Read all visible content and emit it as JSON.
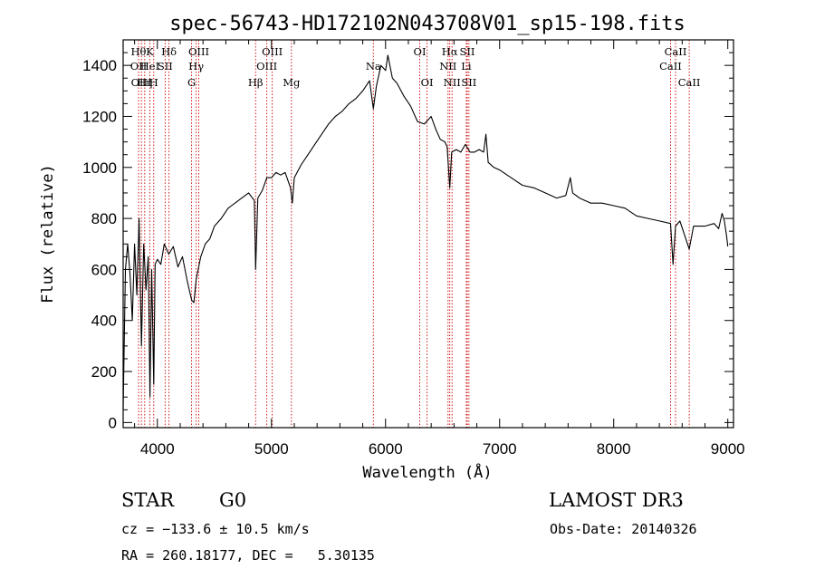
{
  "chart_data": {
    "type": "line",
    "title": "spec-56743-HD172102N043708V01_sp15-198.fits",
    "xlabel": "Wavelength (Å)",
    "ylabel": "Flux (relative)",
    "xlim": [
      3700,
      9050
    ],
    "ylim": [
      -20,
      1500
    ],
    "xticks": [
      4000,
      5000,
      6000,
      7000,
      8000,
      9000
    ],
    "yticks": [
      0,
      200,
      400,
      600,
      800,
      1000,
      1200,
      1400
    ],
    "grid": false,
    "line_color": "#000000",
    "marker_color": "#cc0000",
    "series": [
      {
        "x": [
          3700,
          3720,
          3740,
          3760,
          3780,
          3800,
          3820,
          3840,
          3860,
          3880,
          3900,
          3920,
          3935,
          3950,
          3968,
          3980,
          4000,
          4030,
          4060,
          4100,
          4140,
          4180,
          4220,
          4260,
          4300,
          4320,
          4340,
          4380,
          4420,
          4460,
          4500,
          4560,
          4620,
          4680,
          4740,
          4800,
          4850,
          4861,
          4880,
          4920,
          4960,
          5000,
          5040,
          5080,
          5120,
          5167,
          5183,
          5200,
          5260,
          5320,
          5380,
          5440,
          5500,
          5560,
          5620,
          5680,
          5740,
          5800,
          5860,
          5893,
          5920,
          5960,
          6000,
          6020,
          6060,
          6100,
          6160,
          6220,
          6280,
          6340,
          6400,
          6440,
          6480,
          6520,
          6540,
          6563,
          6580,
          6620,
          6660,
          6700,
          6740,
          6780,
          6820,
          6860,
          6880,
          6900,
          6950,
          7000,
          7100,
          7200,
          7300,
          7400,
          7500,
          7580,
          7620,
          7640,
          7700,
          7800,
          7900,
          8000,
          8100,
          8200,
          8300,
          8400,
          8498,
          8520,
          8542,
          8580,
          8662,
          8700,
          8800,
          8880,
          8920,
          8950,
          8970,
          8990,
          9000
        ],
        "y": [
          50,
          600,
          700,
          580,
          400,
          700,
          500,
          800,
          300,
          700,
          520,
          650,
          100,
          600,
          150,
          620,
          640,
          620,
          700,
          660,
          690,
          610,
          650,
          560,
          480,
          470,
          560,
          650,
          700,
          720,
          770,
          800,
          840,
          860,
          880,
          900,
          870,
          600,
          880,
          910,
          960,
          960,
          980,
          970,
          980,
          920,
          860,
          960,
          1010,
          1050,
          1090,
          1130,
          1170,
          1200,
          1220,
          1250,
          1270,
          1300,
          1340,
          1230,
          1320,
          1400,
          1380,
          1440,
          1350,
          1330,
          1280,
          1240,
          1180,
          1170,
          1200,
          1150,
          1110,
          1100,
          1080,
          920,
          1060,
          1070,
          1060,
          1090,
          1060,
          1060,
          1070,
          1060,
          1130,
          1020,
          1000,
          990,
          960,
          930,
          920,
          900,
          880,
          890,
          960,
          900,
          880,
          860,
          860,
          850,
          840,
          810,
          800,
          790,
          780,
          620,
          770,
          790,
          680,
          770,
          770,
          780,
          760,
          820,
          790,
          730,
          690
        ]
      }
    ],
    "line_markers": [
      {
        "x": 3835,
        "upper": "Hθ",
        "lower": "OII",
        "row": 1
      },
      {
        "x": 3860,
        "upper": "",
        "lower": "OIII",
        "row": 2
      },
      {
        "x": 3889,
        "upper": "",
        "lower": "Hη",
        "row": 2
      },
      {
        "x": 3934,
        "upper": "K",
        "lower": "HeI",
        "row": 1
      },
      {
        "x": 3968,
        "upper": "",
        "lower": "H",
        "row": 2
      },
      {
        "x": 4068,
        "upper": "",
        "lower": "SII",
        "row": 1
      },
      {
        "x": 4102,
        "upper": "Hδ",
        "lower": "",
        "row": 0
      },
      {
        "x": 4300,
        "upper": "",
        "lower": "G",
        "row": 2
      },
      {
        "x": 4340,
        "upper": "",
        "lower": "Hγ",
        "row": 1
      },
      {
        "x": 4363,
        "upper": "OIII",
        "lower": "",
        "row": 0
      },
      {
        "x": 4861,
        "upper": "",
        "lower": "Hβ",
        "row": 2
      },
      {
        "x": 4959,
        "upper": "",
        "lower": "OIII",
        "row": 1
      },
      {
        "x": 5007,
        "upper": "OIII",
        "lower": "",
        "row": 0
      },
      {
        "x": 5175,
        "upper": "",
        "lower": "Mg",
        "row": 2
      },
      {
        "x": 5893,
        "upper": "",
        "lower": "Na",
        "row": 1
      },
      {
        "x": 6300,
        "upper": "OI",
        "lower": "",
        "row": 0
      },
      {
        "x": 6364,
        "upper": "",
        "lower": "OI",
        "row": 2
      },
      {
        "x": 6548,
        "upper": "",
        "lower": "NII",
        "row": 1
      },
      {
        "x": 6563,
        "upper": "Hα",
        "lower": "",
        "row": 0
      },
      {
        "x": 6583,
        "upper": "",
        "lower": "NII",
        "row": 2
      },
      {
        "x": 6708,
        "upper": "",
        "lower": "Li",
        "row": 1
      },
      {
        "x": 6716,
        "upper": "SII",
        "lower": "",
        "row": 0
      },
      {
        "x": 6731,
        "upper": "",
        "lower": "SII",
        "row": 2
      },
      {
        "x": 8498,
        "upper": "",
        "lower": "CaII",
        "row": 1
      },
      {
        "x": 8542,
        "upper": "CaII",
        "lower": "",
        "row": 0
      },
      {
        "x": 8662,
        "upper": "",
        "lower": "CaII",
        "row": 2
      }
    ]
  },
  "info": {
    "object_type": "STAR",
    "subclass": "G0",
    "survey": "LAMOST DR3",
    "redshift": "cz = −133.6 ± 10.5 km/s",
    "obs_date": "Obs-Date: 20140326",
    "coords": "RA = 260.18177, DEC =   5.30135"
  }
}
